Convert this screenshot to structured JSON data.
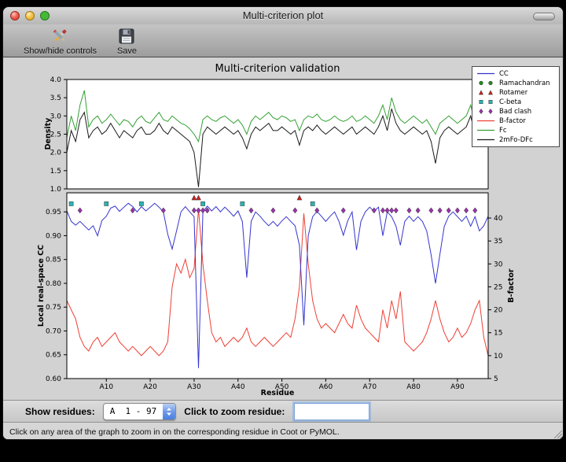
{
  "window": {
    "title": "Multi-criterion plot"
  },
  "toolbar": {
    "show_hide_label": "Show/hide controls",
    "save_label": "Save"
  },
  "chart_data": [
    {
      "type": "line",
      "title": "Multi-criterion validation",
      "ylabel": "Density",
      "ylim": [
        1.0,
        4.0
      ],
      "yticks": [
        1.0,
        1.5,
        2.0,
        2.5,
        3.0,
        3.5,
        4.0
      ],
      "xlim": [
        1,
        97
      ],
      "grid": false,
      "series": [
        {
          "name": "Fc",
          "color": "#33a033",
          "values": [
            2.4,
            3.0,
            2.6,
            3.3,
            3.7,
            2.7,
            2.9,
            3.0,
            2.8,
            2.9,
            3.05,
            2.9,
            2.75,
            2.9,
            2.85,
            2.7,
            2.9,
            3.0,
            2.85,
            2.8,
            2.95,
            3.1,
            2.9,
            2.85,
            3.0,
            2.9,
            2.8,
            2.75,
            2.65,
            2.5,
            2.3,
            2.9,
            3.0,
            2.9,
            2.85,
            2.95,
            3.0,
            2.9,
            2.8,
            2.9,
            2.75,
            2.5,
            2.85,
            3.0,
            2.9,
            3.0,
            3.1,
            2.95,
            2.9,
            3.0,
            2.95,
            2.85,
            2.9,
            2.6,
            2.9,
            3.0,
            2.95,
            3.05,
            2.9,
            2.85,
            2.9,
            3.0,
            2.9,
            2.85,
            2.9,
            3.0,
            2.85,
            2.9,
            3.0,
            2.9,
            2.8,
            3.0,
            3.3,
            2.9,
            3.5,
            3.1,
            2.9,
            2.8,
            2.9,
            3.0,
            2.9,
            2.8,
            2.9,
            2.7,
            2.5,
            2.8,
            2.9,
            3.0,
            2.9,
            2.8,
            2.9,
            3.0,
            3.3,
            2.8,
            2.9,
            3.4,
            3.0
          ]
        },
        {
          "name": "2mFo-DFc",
          "color": "#1a1a1a",
          "values": [
            2.0,
            2.6,
            2.3,
            2.9,
            3.1,
            2.4,
            2.6,
            2.7,
            2.5,
            2.6,
            2.8,
            2.6,
            2.4,
            2.6,
            2.5,
            2.4,
            2.6,
            2.7,
            2.5,
            2.5,
            2.6,
            2.8,
            2.6,
            2.5,
            2.7,
            2.6,
            2.5,
            2.4,
            2.3,
            2.0,
            1.05,
            2.5,
            2.7,
            2.6,
            2.5,
            2.6,
            2.7,
            2.6,
            2.5,
            2.6,
            2.4,
            2.1,
            2.5,
            2.7,
            2.6,
            2.7,
            2.8,
            2.6,
            2.6,
            2.7,
            2.6,
            2.5,
            2.6,
            2.2,
            2.6,
            2.7,
            2.6,
            2.75,
            2.6,
            2.5,
            2.6,
            2.7,
            2.6,
            2.5,
            2.6,
            2.7,
            2.5,
            2.6,
            2.7,
            2.6,
            2.5,
            2.7,
            3.0,
            2.6,
            3.2,
            2.8,
            2.6,
            2.5,
            2.6,
            2.7,
            2.6,
            2.5,
            2.6,
            2.3,
            1.7,
            2.4,
            2.6,
            2.7,
            2.6,
            2.5,
            2.6,
            2.7,
            3.0,
            2.5,
            2.6,
            3.1,
            2.7
          ]
        }
      ]
    },
    {
      "type": "line",
      "xlabel": "Residue",
      "ylabel_left": "Local real-space CC",
      "ylabel_right": "B-factor",
      "ylim_left": [
        0.6,
        0.99
      ],
      "ylim_right": [
        5,
        45.5
      ],
      "yticks_left": [
        0.6,
        0.65,
        0.7,
        0.75,
        0.8,
        0.85,
        0.9,
        0.95
      ],
      "yticks_right": [
        5,
        10,
        15,
        20,
        25,
        30,
        35,
        40
      ],
      "xlim": [
        1,
        97
      ],
      "xticks": {
        "values": [
          10,
          20,
          30,
          40,
          50,
          60,
          70,
          80,
          90
        ],
        "labels": [
          "A10",
          "A20",
          "A30",
          "A40",
          "A50",
          "A60",
          "A70",
          "A80",
          "A90"
        ]
      },
      "grid": false,
      "series": [
        {
          "name": "CC",
          "axis": "left",
          "color": "#3434cf",
          "values": [
            0.952,
            0.93,
            0.922,
            0.93,
            0.921,
            0.912,
            0.921,
            0.9,
            0.932,
            0.941,
            0.958,
            0.962,
            0.951,
            0.96,
            0.968,
            0.961,
            0.95,
            0.961,
            0.952,
            0.96,
            0.968,
            0.96,
            0.95,
            0.903,
            0.872,
            0.91,
            0.95,
            0.961,
            0.95,
            0.94,
            0.622,
            0.95,
            0.962,
            0.952,
            0.961,
            0.95,
            0.96,
            0.951,
            0.941,
            0.952,
            0.93,
            0.812,
            0.93,
            0.95,
            0.941,
            0.93,
            0.921,
            0.93,
            0.92,
            0.931,
            0.94,
            0.93,
            0.921,
            0.88,
            0.712,
            0.9,
            0.94,
            0.951,
            0.941,
            0.93,
            0.941,
            0.95,
            0.93,
            0.901,
            0.931,
            0.95,
            0.87,
            0.93,
            0.95,
            0.96,
            0.951,
            0.96,
            0.9,
            0.95,
            0.94,
            0.92,
            0.88,
            0.93,
            0.941,
            0.93,
            0.94,
            0.93,
            0.91,
            0.86,
            0.8,
            0.861,
            0.92,
            0.941,
            0.95,
            0.94,
            0.93,
            0.941,
            0.92,
            0.94,
            0.91,
            0.921,
            0.941
          ]
        },
        {
          "name": "B-factor",
          "axis": "right",
          "color": "#ee4035",
          "values": [
            22,
            20,
            18,
            14,
            12,
            11,
            13,
            14,
            12,
            13,
            14,
            15,
            13,
            12,
            11,
            12,
            11,
            10,
            11,
            12,
            11,
            10,
            11,
            13,
            25,
            30,
            28,
            31,
            27,
            29,
            42,
            30,
            22,
            15,
            13,
            14,
            12,
            13,
            14,
            13,
            14,
            16,
            13,
            12,
            13,
            14,
            13,
            12,
            13,
            14,
            15,
            14,
            18,
            25,
            41,
            30,
            22,
            18,
            16,
            17,
            16,
            15,
            17,
            19,
            17,
            16,
            21,
            18,
            16,
            15,
            14,
            13,
            20,
            16,
            22,
            18,
            24,
            13,
            12,
            11,
            12,
            13,
            15,
            18,
            22,
            18,
            15,
            13,
            14,
            16,
            14,
            15,
            17,
            20,
            22,
            14,
            10
          ]
        }
      ],
      "markers": [
        {
          "name": "Ramachandran",
          "shape": "circle",
          "color": "#228b22",
          "y": 0.99,
          "residues": []
        },
        {
          "name": "Rotamer",
          "shape": "triangle",
          "color": "#cc2222",
          "y": 0.98,
          "residues": [
            30,
            31,
            54
          ]
        },
        {
          "name": "C-beta",
          "shape": "square",
          "color": "#2ab5b5",
          "y": 0.967,
          "residues": [
            2,
            10,
            18,
            32,
            41,
            57
          ]
        },
        {
          "name": "Bad clash",
          "shape": "diamond",
          "color": "#9933aa",
          "y": 0.953,
          "residues": [
            4,
            16,
            23,
            30,
            31,
            32,
            33,
            43,
            48,
            53,
            58,
            64,
            71,
            73,
            74,
            75,
            76,
            79,
            81,
            84,
            86,
            88,
            90,
            92,
            94
          ]
        }
      ]
    }
  ],
  "legend": {
    "entries": [
      {
        "label": "CC",
        "type": "line",
        "color": "#3434cf"
      },
      {
        "label": "Ramachandran",
        "type": "circle",
        "color": "#228b22"
      },
      {
        "label": "Rotamer",
        "type": "triangle",
        "color": "#cc2222"
      },
      {
        "label": "C-beta",
        "type": "square",
        "color": "#2ab5b5"
      },
      {
        "label": "Bad clash",
        "type": "diamond",
        "color": "#9933aa"
      },
      {
        "label": "B-factor",
        "type": "line",
        "color": "#ee4035"
      },
      {
        "label": "Fc",
        "type": "line",
        "color": "#33a033"
      },
      {
        "label": "2mFo-DFc",
        "type": "line",
        "color": "#1a1a1a"
      }
    ]
  },
  "controls": {
    "show_residues_label": "Show residues:",
    "residue_range_value": "A  1 - 97",
    "zoom_label": "Click to zoom residue:",
    "zoom_input_value": ""
  },
  "status_bar": {
    "text": "Click on any area of the graph to zoom in on the corresponding residue in Coot or PyMOL."
  }
}
